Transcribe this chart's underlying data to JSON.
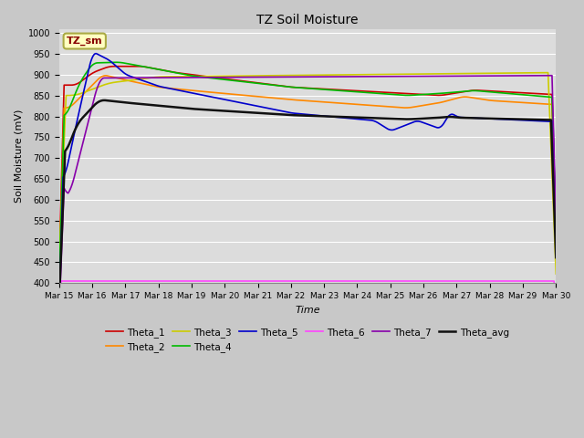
{
  "title": "TZ Soil Moisture",
  "xlabel": "Time",
  "ylabel": "Soil Moisture (mV)",
  "ylim": [
    400,
    1010
  ],
  "yticks": [
    400,
    450,
    500,
    550,
    600,
    650,
    700,
    750,
    800,
    850,
    900,
    950,
    1000
  ],
  "fig_facecolor": "#d4d4d4",
  "plot_facecolor": "#e0e0e0",
  "legend_label": "TZ_sm",
  "series_colors": {
    "Theta_1": "#cc0000",
    "Theta_2": "#ff8800",
    "Theta_3": "#cccc00",
    "Theta_4": "#00bb00",
    "Theta_5": "#0000cc",
    "Theta_6": "#ff44ff",
    "Theta_7": "#8800aa",
    "Theta_avg": "#111111"
  },
  "tick_labels": [
    "Mar 15",
    "Mar 16",
    "Mar 17",
    "Mar 18",
    "Mar 19",
    "Mar 20",
    "Mar 21",
    "Mar 22",
    "Mar 23",
    "Mar 24",
    "Mar 25",
    "Mar 26",
    "Mar 27",
    "Mar 28",
    "Mar 29",
    "Mar 30"
  ]
}
